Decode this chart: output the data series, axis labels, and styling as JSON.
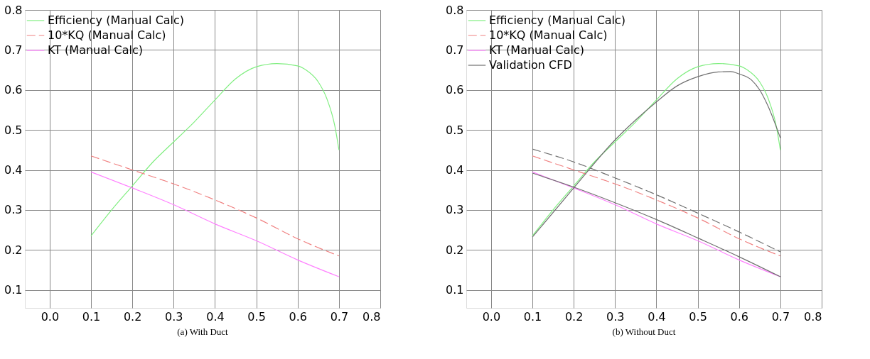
{
  "chart_data": [
    {
      "type": "line",
      "annotations": [
        "(a)    With Duct"
      ],
      "xlim": [
        -0.06,
        0.8
      ],
      "ylim": [
        0.055,
        0.8
      ],
      "xticks": [
        {
          "value": 0,
          "label": "0.0"
        },
        0.1,
        0.2,
        0.3,
        0.4,
        0.5,
        0.6,
        0.7,
        0.8
      ],
      "yticks": [
        0.1,
        0.2,
        0.3,
        0.4,
        0.5,
        0.6,
        0.7,
        0.8
      ],
      "grid": true,
      "legend": "top left",
      "line_style": "solid",
      "series": [
        {
          "name": "Efficiency (Manual Calc)",
          "color": "#80ee80",
          "x": [
            0.1,
            0.15,
            0.2,
            0.25,
            0.3,
            0.35,
            0.4,
            0.45,
            0.5,
            0.55,
            0.6,
            0.62,
            0.65,
            0.67,
            0.69,
            0.7
          ],
          "values": [
            0.235,
            0.3,
            0.36,
            0.42,
            0.47,
            0.52,
            0.575,
            0.628,
            0.658,
            0.666,
            0.66,
            0.65,
            0.62,
            0.58,
            0.51,
            0.45
          ]
        },
        {
          "name": "10*KQ (Manual Calc)",
          "color": "#f08080",
          "line_style": "dashed",
          "x": [
            0.1,
            0.2,
            0.3,
            0.4,
            0.5,
            0.6,
            0.7
          ],
          "values": [
            0.435,
            0.4,
            0.365,
            0.325,
            0.28,
            0.228,
            0.185
          ]
        },
        {
          "name": "KT (Manual Calc)",
          "color": "#ff80ff",
          "x": [
            0.1,
            0.2,
            0.3,
            0.4,
            0.5,
            0.6,
            0.7
          ],
          "values": [
            0.395,
            0.355,
            0.313,
            0.265,
            0.223,
            0.175,
            0.133
          ]
        }
      ]
    },
    {
      "type": "line",
      "annotations": [
        "(b)    Without Duct"
      ],
      "xlim": [
        -0.06,
        0.8
      ],
      "ylim": [
        0.055,
        0.8
      ],
      "xticks": [
        {
          "value": 0,
          "label": "0.0"
        },
        0.1,
        0.2,
        0.3,
        0.4,
        0.5,
        0.6,
        0.7,
        0.8
      ],
      "yticks": [
        0.1,
        0.2,
        0.3,
        0.4,
        0.5,
        0.6,
        0.7,
        0.8
      ],
      "grid": true,
      "legend": "top left",
      "line_style": "solid",
      "series": [
        {
          "name": "Efficiency (Manual Calc)",
          "color": "#80ee80",
          "x": [
            0.1,
            0.15,
            0.2,
            0.25,
            0.3,
            0.35,
            0.4,
            0.45,
            0.5,
            0.55,
            0.6,
            0.62,
            0.65,
            0.67,
            0.69,
            0.7
          ],
          "values": [
            0.235,
            0.3,
            0.36,
            0.42,
            0.47,
            0.52,
            0.575,
            0.628,
            0.658,
            0.666,
            0.66,
            0.65,
            0.62,
            0.58,
            0.51,
            0.45
          ]
        },
        {
          "name": "10*KQ (Manual Calc)",
          "color": "#f08080",
          "line_style": "dashed",
          "x": [
            0.1,
            0.2,
            0.3,
            0.4,
            0.5,
            0.6,
            0.7
          ],
          "values": [
            0.435,
            0.4,
            0.365,
            0.325,
            0.28,
            0.228,
            0.185
          ]
        },
        {
          "name": "KT (Manual Calc)",
          "color": "#ff80ff",
          "x": [
            0.1,
            0.2,
            0.3,
            0.4,
            0.5,
            0.6,
            0.7
          ],
          "values": [
            0.395,
            0.355,
            0.313,
            0.265,
            0.223,
            0.175,
            0.133
          ]
        },
        {
          "name": "Validation CFD",
          "color": "#707070",
          "x": [
            0.1,
            0.2,
            0.3,
            0.35,
            0.4,
            0.45,
            0.5,
            0.55,
            0.58,
            0.6,
            0.63,
            0.65,
            0.67,
            0.7
          ],
          "values": [
            0.232,
            0.355,
            0.475,
            0.525,
            0.57,
            0.61,
            0.633,
            0.645,
            0.646,
            0.64,
            0.625,
            0.6,
            0.56,
            0.48
          ]
        },
        {
          "color": "#707070",
          "line_style": "dashed",
          "x": [
            0.1,
            0.2,
            0.3,
            0.4,
            0.5,
            0.6,
            0.7
          ],
          "values": [
            0.452,
            0.42,
            0.38,
            0.338,
            0.292,
            0.245,
            0.195
          ]
        },
        {
          "color": "#707070",
          "x": [
            0.1,
            0.2,
            0.3,
            0.4,
            0.5,
            0.6,
            0.7
          ],
          "values": [
            0.392,
            0.357,
            0.318,
            0.276,
            0.23,
            0.183,
            0.133
          ]
        }
      ]
    }
  ]
}
